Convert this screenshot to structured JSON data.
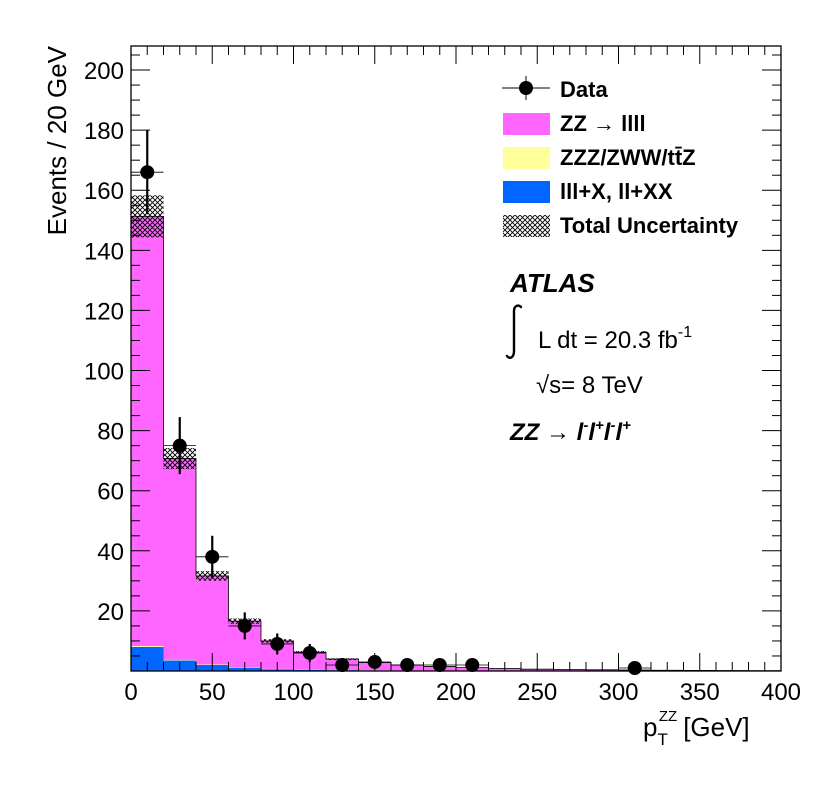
{
  "chart_data": {
    "type": "bar",
    "subtype": "stacked-histogram",
    "xlabel_main": "p",
    "xlabel_sub": "T",
    "xlabel_sup": "ZZ",
    "xlabel_unit": "[GeV]",
    "ylabel": "Events / 20 GeV",
    "xlim": [
      0,
      400
    ],
    "ylim": [
      0,
      208
    ],
    "bin_width": 20,
    "bin_edges": [
      0,
      20,
      40,
      60,
      80,
      100,
      120,
      140,
      160,
      180,
      200,
      220,
      240,
      260,
      280,
      300,
      320,
      340,
      360,
      380,
      400
    ],
    "x_ticks": [
      "0",
      "50",
      "100",
      "150",
      "200",
      "250",
      "300",
      "350",
      "400"
    ],
    "x_tick_values": [
      0,
      50,
      100,
      150,
      200,
      250,
      300,
      350,
      400
    ],
    "y_ticks": [
      "20",
      "40",
      "60",
      "80",
      "100",
      "120",
      "140",
      "160",
      "180",
      "200"
    ],
    "y_tick_values": [
      20,
      40,
      60,
      80,
      100,
      120,
      140,
      160,
      180,
      200
    ],
    "series": [
      {
        "name": "lll+X, ll+XX",
        "legend_label": "lll+X, ll+XX",
        "color": "#0066ff",
        "values": [
          8,
          3.5,
          2,
          1,
          0.6,
          0.4,
          0.3,
          0.2,
          0.15,
          0.1,
          0.1,
          0.05,
          0.05,
          0.05,
          0.03,
          0.03,
          0.02,
          0.02,
          0.01,
          0.01
        ]
      },
      {
        "name": "ZZZ/ZWW/ttZ",
        "legend_label": "ZZZ/ZWW/tt̄Z",
        "color": "#ffff99",
        "values": [
          0.3,
          0.2,
          0.15,
          0.1,
          0.1,
          0.05,
          0.05,
          0.05,
          0.03,
          0.03,
          0.02,
          0.02,
          0.01,
          0.01,
          0.01,
          0.01,
          0.01,
          0.01,
          0.01,
          0.01
        ]
      },
      {
        "name": "ZZ → llll",
        "legend_label": "ZZ  → llll",
        "color": "#ff66ff",
        "values": [
          143,
          67,
          29.5,
          15.5,
          9.3,
          5.8,
          3.6,
          2.6,
          1.8,
          1.35,
          1.0,
          0.75,
          0.55,
          0.45,
          0.35,
          0.28,
          0.2,
          0.17,
          0.12,
          0.1
        ]
      }
    ],
    "uncertainty": {
      "legend_label": "Total Uncertainty",
      "values": [
        7,
        3.5,
        1.6,
        0.9,
        0.6,
        0.4,
        0.3,
        0.2,
        0.15,
        0.1,
        0.08,
        0.06,
        0.05,
        0.04,
        0.03,
        0.03,
        0.02,
        0.02,
        0.02,
        0.02
      ]
    },
    "data_points": {
      "legend_label": "Data",
      "points": [
        {
          "x": 10,
          "y": 166,
          "err": 14
        },
        {
          "x": 30,
          "y": 75,
          "err": 9.5
        },
        {
          "x": 50,
          "y": 38,
          "err": 7
        },
        {
          "x": 70,
          "y": 15,
          "err": 4.5
        },
        {
          "x": 90,
          "y": 9,
          "err": 3.5
        },
        {
          "x": 110,
          "y": 6,
          "err": 3
        },
        {
          "x": 130,
          "y": 2,
          "err": 2
        },
        {
          "x": 150,
          "y": 3,
          "err": 2
        },
        {
          "x": 170,
          "y": 2,
          "err": 1.8
        },
        {
          "x": 190,
          "y": 2,
          "err": 1.8
        },
        {
          "x": 210,
          "y": 2,
          "err": 1.8
        },
        {
          "x": 310,
          "y": 1,
          "err": 1.2
        }
      ]
    },
    "annotation": {
      "experiment": "ATLAS",
      "lumi_prefix": "L dt = 20.3 fb",
      "lumi_sup": "-1",
      "energy_sqrt": "√",
      "energy_text": "s= 8 TeV",
      "channel": "ZZ  → l⁻l⁺l⁻l⁺",
      "channel_parts": [
        {
          "base": "ZZ",
          "sup": ""
        },
        {
          "base": " → ",
          "sup": ""
        },
        {
          "base": "l",
          "sup": "-"
        },
        {
          "base": "l",
          "sup": "+"
        },
        {
          "base": "l",
          "sup": "-"
        },
        {
          "base": "l",
          "sup": "+"
        }
      ]
    },
    "legend_position": "top-right"
  }
}
